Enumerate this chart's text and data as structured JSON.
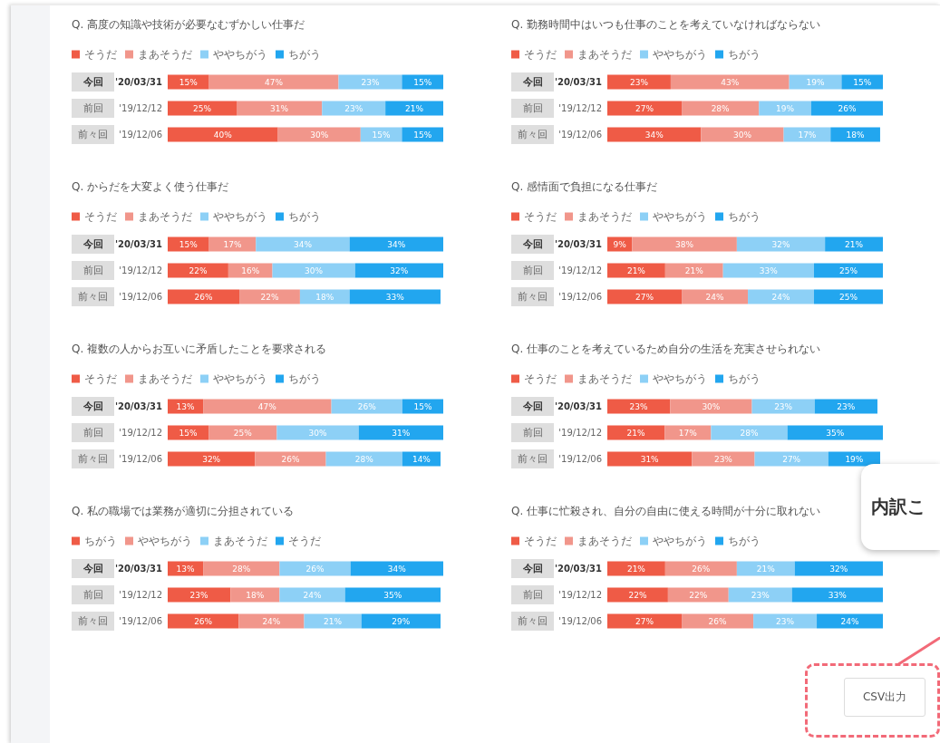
{
  "chart_data": [
    {
      "type": "bar",
      "title": "Q. 高度の知識や技術が必要なむずかしい仕事だ",
      "orientation": "horizontal",
      "stacked": true,
      "legend": "top left",
      "tick_labels": "y",
      "categories": [
        "今回",
        "前回",
        "前々回"
      ],
      "y2_categories": [
        "'20/03/31",
        "'19/12/12",
        "'19/12/06"
      ],
      "series": [
        {
          "name": "そうだ",
          "color": "#ef5b46",
          "values": [
            15,
            25,
            40
          ],
          "value_labels": [
            "15%",
            "25%",
            "40%"
          ]
        },
        {
          "name": "まあそうだ",
          "color": "#f1968b",
          "values": [
            47,
            31,
            30
          ],
          "value_labels": [
            "47%",
            "31%",
            "30%"
          ]
        },
        {
          "name": "ややちがう",
          "color": "#8dd0f6",
          "values": [
            23,
            23,
            15
          ],
          "value_labels": [
            "23%",
            "23%",
            "15%"
          ]
        },
        {
          "name": "ちがう",
          "color": "#22a6ef",
          "values": [
            15,
            21,
            15
          ],
          "value_labels": [
            "15%",
            "21%",
            "15%"
          ]
        }
      ]
    },
    {
      "type": "bar",
      "title": "Q. 勤務時間中はいつも仕事のことを考えていなければならない",
      "orientation": "horizontal",
      "stacked": true,
      "legend": "top left",
      "tick_labels": "y",
      "categories": [
        "今回",
        "前回",
        "前々回"
      ],
      "y2_categories": [
        "'20/03/31",
        "'19/12/12",
        "'19/12/06"
      ],
      "series": [
        {
          "name": "そうだ",
          "color": "#ef5b46",
          "values": [
            23,
            27,
            34
          ],
          "value_labels": [
            "23%",
            "27%",
            "34%"
          ]
        },
        {
          "name": "まあそうだ",
          "color": "#f1968b",
          "values": [
            43,
            28,
            30
          ],
          "value_labels": [
            "43%",
            "28%",
            "30%"
          ]
        },
        {
          "name": "ややちがう",
          "color": "#8dd0f6",
          "values": [
            19,
            19,
            17
          ],
          "value_labels": [
            "19%",
            "19%",
            "17%"
          ]
        },
        {
          "name": "ちがう",
          "color": "#22a6ef",
          "values": [
            15,
            26,
            18
          ],
          "value_labels": [
            "15%",
            "26%",
            "18%"
          ]
        }
      ]
    },
    {
      "type": "bar",
      "title": "Q. からだを大変よく使う仕事だ",
      "orientation": "horizontal",
      "stacked": true,
      "legend": "top left",
      "tick_labels": "y",
      "categories": [
        "今回",
        "前回",
        "前々回"
      ],
      "y2_categories": [
        "'20/03/31",
        "'19/12/12",
        "'19/12/06"
      ],
      "series": [
        {
          "name": "そうだ",
          "color": "#ef5b46",
          "values": [
            15,
            22,
            26
          ],
          "value_labels": [
            "15%",
            "22%",
            "26%"
          ]
        },
        {
          "name": "まあそうだ",
          "color": "#f1968b",
          "values": [
            17,
            16,
            22
          ],
          "value_labels": [
            "17%",
            "16%",
            "22%"
          ]
        },
        {
          "name": "ややちがう",
          "color": "#8dd0f6",
          "values": [
            34,
            30,
            18
          ],
          "value_labels": [
            "34%",
            "30%",
            "18%"
          ]
        },
        {
          "name": "ちがう",
          "color": "#22a6ef",
          "values": [
            34,
            32,
            33
          ],
          "value_labels": [
            "34%",
            "32%",
            "33%"
          ]
        }
      ]
    },
    {
      "type": "bar",
      "title": "Q. 感情面で負担になる仕事だ",
      "orientation": "horizontal",
      "stacked": true,
      "legend": "top left",
      "tick_labels": "y",
      "categories": [
        "今回",
        "前回",
        "前々回"
      ],
      "y2_categories": [
        "'20/03/31",
        "'19/12/12",
        "'19/12/06"
      ],
      "series": [
        {
          "name": "そうだ",
          "color": "#ef5b46",
          "values": [
            9,
            21,
            27
          ],
          "value_labels": [
            "9%",
            "21%",
            "27%"
          ]
        },
        {
          "name": "まあそうだ",
          "color": "#f1968b",
          "values": [
            38,
            21,
            24
          ],
          "value_labels": [
            "38%",
            "21%",
            "24%"
          ]
        },
        {
          "name": "ややちがう",
          "color": "#8dd0f6",
          "values": [
            32,
            33,
            24
          ],
          "value_labels": [
            "32%",
            "33%",
            "24%"
          ]
        },
        {
          "name": "ちがう",
          "color": "#22a6ef",
          "values": [
            21,
            25,
            25
          ],
          "value_labels": [
            "21%",
            "25%",
            "25%"
          ]
        }
      ]
    },
    {
      "type": "bar",
      "title": "Q. 複数の人からお互いに矛盾したことを要求される",
      "orientation": "horizontal",
      "stacked": true,
      "legend": "top left",
      "tick_labels": "y",
      "categories": [
        "今回",
        "前回",
        "前々回"
      ],
      "y2_categories": [
        "'20/03/31",
        "'19/12/12",
        "'19/12/06"
      ],
      "series": [
        {
          "name": "そうだ",
          "color": "#ef5b46",
          "values": [
            13,
            15,
            32
          ],
          "value_labels": [
            "13%",
            "15%",
            "32%"
          ]
        },
        {
          "name": "まあそうだ",
          "color": "#f1968b",
          "values": [
            47,
            25,
            26
          ],
          "value_labels": [
            "47%",
            "25%",
            "26%"
          ]
        },
        {
          "name": "ややちがう",
          "color": "#8dd0f6",
          "values": [
            26,
            30,
            28
          ],
          "value_labels": [
            "26%",
            "30%",
            "28%"
          ]
        },
        {
          "name": "ちがう",
          "color": "#22a6ef",
          "values": [
            15,
            31,
            14
          ],
          "value_labels": [
            "15%",
            "31%",
            "14%"
          ]
        }
      ]
    },
    {
      "type": "bar",
      "title": "Q. 仕事のことを考えているため自分の生活を充実させられない",
      "orientation": "horizontal",
      "stacked": true,
      "legend": "top left",
      "tick_labels": "y",
      "categories": [
        "今回",
        "前回",
        "前々回"
      ],
      "y2_categories": [
        "'20/03/31",
        "'19/12/12",
        "'19/12/06"
      ],
      "series": [
        {
          "name": "そうだ",
          "color": "#ef5b46",
          "values": [
            23,
            21,
            31
          ],
          "value_labels": [
            "23%",
            "21%",
            "31%"
          ]
        },
        {
          "name": "まあそうだ",
          "color": "#f1968b",
          "values": [
            30,
            17,
            23
          ],
          "value_labels": [
            "30%",
            "17%",
            "23%"
          ]
        },
        {
          "name": "ややちがう",
          "color": "#8dd0f6",
          "values": [
            23,
            28,
            27
          ],
          "value_labels": [
            "23%",
            "28%",
            "27%"
          ]
        },
        {
          "name": "ちがう",
          "color": "#22a6ef",
          "values": [
            23,
            35,
            19
          ],
          "value_labels": [
            "23%",
            "35%",
            "19%"
          ]
        }
      ]
    },
    {
      "type": "bar",
      "title": "Q. 私の職場では業務が適切に分担されている",
      "orientation": "horizontal",
      "stacked": true,
      "legend": "top left",
      "tick_labels": "y",
      "categories": [
        "今回",
        "前回",
        "前々回"
      ],
      "y2_categories": [
        "'20/03/31",
        "'19/12/12",
        "'19/12/06"
      ],
      "series": [
        {
          "name": "ちがう",
          "color": "#ef5b46",
          "values": [
            13,
            23,
            26
          ],
          "value_labels": [
            "13%",
            "23%",
            "26%"
          ]
        },
        {
          "name": "ややちがう",
          "color": "#f1968b",
          "values": [
            28,
            18,
            24
          ],
          "value_labels": [
            "28%",
            "18%",
            "24%"
          ]
        },
        {
          "name": "まあそうだ",
          "color": "#8dd0f6",
          "values": [
            26,
            24,
            21
          ],
          "value_labels": [
            "26%",
            "24%",
            "21%"
          ]
        },
        {
          "name": "そうだ",
          "color": "#22a6ef",
          "values": [
            34,
            35,
            29
          ],
          "value_labels": [
            "34%",
            "35%",
            "29%"
          ]
        }
      ]
    },
    {
      "type": "bar",
      "title": "Q. 仕事に忙殺され、自分の自由に使える時間が十分に取れない",
      "orientation": "horizontal",
      "stacked": true,
      "legend": "top left",
      "tick_labels": "y",
      "categories": [
        "今回",
        "前回",
        "前々回"
      ],
      "y2_categories": [
        "'20/03/31",
        "'19/12/12",
        "'19/12/06"
      ],
      "series": [
        {
          "name": "そうだ",
          "color": "#ef5b46",
          "values": [
            21,
            22,
            27
          ],
          "value_labels": [
            "21%",
            "22%",
            "27%"
          ]
        },
        {
          "name": "まあそうだ",
          "color": "#f1968b",
          "values": [
            26,
            22,
            26
          ],
          "value_labels": [
            "26%",
            "22%",
            "26%"
          ]
        },
        {
          "name": "ややちがう",
          "color": "#8dd0f6",
          "values": [
            21,
            23,
            23
          ],
          "value_labels": [
            "21%",
            "23%",
            "23%"
          ]
        },
        {
          "name": "ちがう",
          "color": "#22a6ef",
          "values": [
            32,
            33,
            24
          ],
          "value_labels": [
            "32%",
            "33%",
            "24%"
          ]
        }
      ],
      "annotations": [
        "内訳こ",
        "CSV出力"
      ]
    }
  ]
}
